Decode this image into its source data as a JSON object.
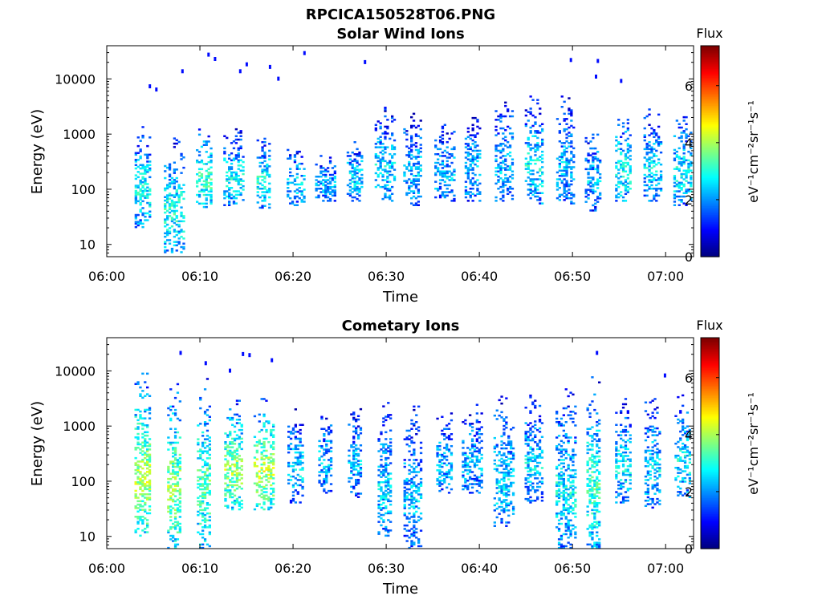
{
  "figure": {
    "title": "RPCICA150528T06.PNG"
  },
  "chart_data": [
    {
      "type": "heatmap",
      "title": "Solar Wind Ions",
      "xlabel": "Time",
      "ylabel": "Energy (eV)",
      "y_scale": "log",
      "ylim": [
        6,
        40000
      ],
      "x_ticks": [
        "06:00",
        "06:10",
        "06:20",
        "06:30",
        "06:40",
        "06:50",
        "07:00"
      ],
      "x_range_minutes": [
        0,
        63
      ],
      "y_ticks": [
        {
          "value": 10,
          "label": "10"
        },
        {
          "value": 100,
          "label": "100"
        },
        {
          "value": 1000,
          "label": "1000"
        },
        {
          "value": 10000,
          "label": "10000"
        }
      ],
      "colorbar": {
        "label": "Flux",
        "unit": "eV⁻¹cm⁻²sr⁻¹s⁻¹",
        "range": [
          0,
          7.4
        ],
        "ticks": [
          0,
          2,
          4,
          6
        ],
        "colormap": "jet"
      },
      "bursts": [
        {
          "t": 3.8,
          "lo": 20,
          "hi": 1500,
          "flux": 2.4
        },
        {
          "t": 7.2,
          "lo": 7,
          "hi": 900,
          "flux": 2.6
        },
        {
          "t": 10.4,
          "lo": 40,
          "hi": 1500,
          "flux": 2.8
        },
        {
          "t": 13.6,
          "lo": 50,
          "hi": 1200,
          "flux": 2.4
        },
        {
          "t": 16.8,
          "lo": 45,
          "hi": 900,
          "flux": 2.6
        },
        {
          "t": 20.2,
          "lo": 50,
          "hi": 600,
          "flux": 2.2
        },
        {
          "t": 23.4,
          "lo": 60,
          "hi": 400,
          "flux": 2.0
        },
        {
          "t": 26.6,
          "lo": 60,
          "hi": 800,
          "flux": 2.2
        },
        {
          "t": 29.8,
          "lo": 60,
          "hi": 3000,
          "flux": 2.2
        },
        {
          "t": 32.8,
          "lo": 50,
          "hi": 2500,
          "flux": 2.0
        },
        {
          "t": 36.2,
          "lo": 60,
          "hi": 1500,
          "flux": 2.0
        },
        {
          "t": 39.2,
          "lo": 60,
          "hi": 2500,
          "flux": 2.0
        },
        {
          "t": 42.6,
          "lo": 60,
          "hi": 5000,
          "flux": 2.0
        },
        {
          "t": 45.8,
          "lo": 50,
          "hi": 5000,
          "flux": 2.4
        },
        {
          "t": 49.2,
          "lo": 50,
          "hi": 5000,
          "flux": 2.0
        },
        {
          "t": 52.2,
          "lo": 40,
          "hi": 1500,
          "flux": 2.0
        },
        {
          "t": 55.4,
          "lo": 60,
          "hi": 2500,
          "flux": 2.6
        },
        {
          "t": 58.6,
          "lo": 60,
          "hi": 3000,
          "flux": 2.2
        },
        {
          "t": 61.8,
          "lo": 50,
          "hi": 2500,
          "flux": 2.4
        }
      ],
      "hf_pixels": [
        {
          "t": 4.5,
          "e": 8000
        },
        {
          "t": 5.2,
          "e": 7000
        },
        {
          "t": 8.0,
          "e": 15000
        },
        {
          "t": 10.8,
          "e": 30000
        },
        {
          "t": 11.5,
          "e": 25000
        },
        {
          "t": 14.2,
          "e": 15000
        },
        {
          "t": 14.9,
          "e": 20000
        },
        {
          "t": 17.4,
          "e": 18000
        },
        {
          "t": 18.3,
          "e": 11000
        },
        {
          "t": 21.1,
          "e": 32000
        },
        {
          "t": 27.6,
          "e": 22000
        },
        {
          "t": 49.7,
          "e": 24000
        },
        {
          "t": 52.6,
          "e": 23000
        },
        {
          "t": 52.4,
          "e": 12000
        },
        {
          "t": 55.1,
          "e": 10000
        }
      ]
    },
    {
      "type": "heatmap",
      "title": "Cometary Ions",
      "xlabel": "Time",
      "ylabel": "Energy (eV)",
      "y_scale": "log",
      "ylim": [
        6,
        40000
      ],
      "x_ticks": [
        "06:00",
        "06:10",
        "06:20",
        "06:30",
        "06:40",
        "06:50",
        "07:00"
      ],
      "x_range_minutes": [
        0,
        63
      ],
      "y_ticks": [
        {
          "value": 10,
          "label": "10"
        },
        {
          "value": 100,
          "label": "100"
        },
        {
          "value": 1000,
          "label": "1000"
        },
        {
          "value": 10000,
          "label": "10000"
        }
      ],
      "colorbar": {
        "label": "Flux",
        "unit": "eV⁻¹cm⁻²sr⁻¹s⁻¹",
        "range": [
          0,
          7.4
        ],
        "ticks": [
          0,
          2,
          4,
          6
        ],
        "colormap": "jet"
      },
      "bursts": [
        {
          "t": 3.8,
          "lo": 10,
          "hi": 9000,
          "flux": 3.6
        },
        {
          "t": 7.2,
          "lo": 6,
          "hi": 6000,
          "flux": 3.4
        },
        {
          "t": 10.4,
          "lo": 6,
          "hi": 9000,
          "flux": 3.0
        },
        {
          "t": 13.6,
          "lo": 30,
          "hi": 3000,
          "flux": 3.4
        },
        {
          "t": 16.8,
          "lo": 30,
          "hi": 3000,
          "flux": 3.6
        },
        {
          "t": 20.2,
          "lo": 40,
          "hi": 2000,
          "flux": 2.2
        },
        {
          "t": 23.4,
          "lo": 60,
          "hi": 2500,
          "flux": 2.0
        },
        {
          "t": 26.6,
          "lo": 50,
          "hi": 2500,
          "flux": 2.0
        },
        {
          "t": 29.8,
          "lo": 10,
          "hi": 3000,
          "flux": 2.2
        },
        {
          "t": 32.8,
          "lo": 6,
          "hi": 2500,
          "flux": 2.0
        },
        {
          "t": 36.2,
          "lo": 60,
          "hi": 2000,
          "flux": 2.0
        },
        {
          "t": 39.2,
          "lo": 60,
          "hi": 2500,
          "flux": 2.0
        },
        {
          "t": 42.6,
          "lo": 15,
          "hi": 4000,
          "flux": 2.2
        },
        {
          "t": 45.8,
          "lo": 40,
          "hi": 4000,
          "flux": 2.2
        },
        {
          "t": 49.2,
          "lo": 6,
          "hi": 5000,
          "flux": 2.4
        },
        {
          "t": 52.2,
          "lo": 6,
          "hi": 8000,
          "flux": 2.8
        },
        {
          "t": 55.4,
          "lo": 40,
          "hi": 3000,
          "flux": 2.4
        },
        {
          "t": 58.6,
          "lo": 30,
          "hi": 4000,
          "flux": 2.2
        },
        {
          "t": 61.8,
          "lo": 50,
          "hi": 4000,
          "flux": 2.4
        }
      ],
      "hf_pixels": [
        {
          "t": 7.8,
          "e": 23000
        },
        {
          "t": 10.5,
          "e": 15000
        },
        {
          "t": 14.5,
          "e": 22000
        },
        {
          "t": 15.2,
          "e": 21000
        },
        {
          "t": 17.6,
          "e": 17000
        },
        {
          "t": 13.1,
          "e": 11000
        },
        {
          "t": 52.5,
          "e": 23000
        },
        {
          "t": 59.8,
          "e": 9000
        }
      ]
    }
  ]
}
